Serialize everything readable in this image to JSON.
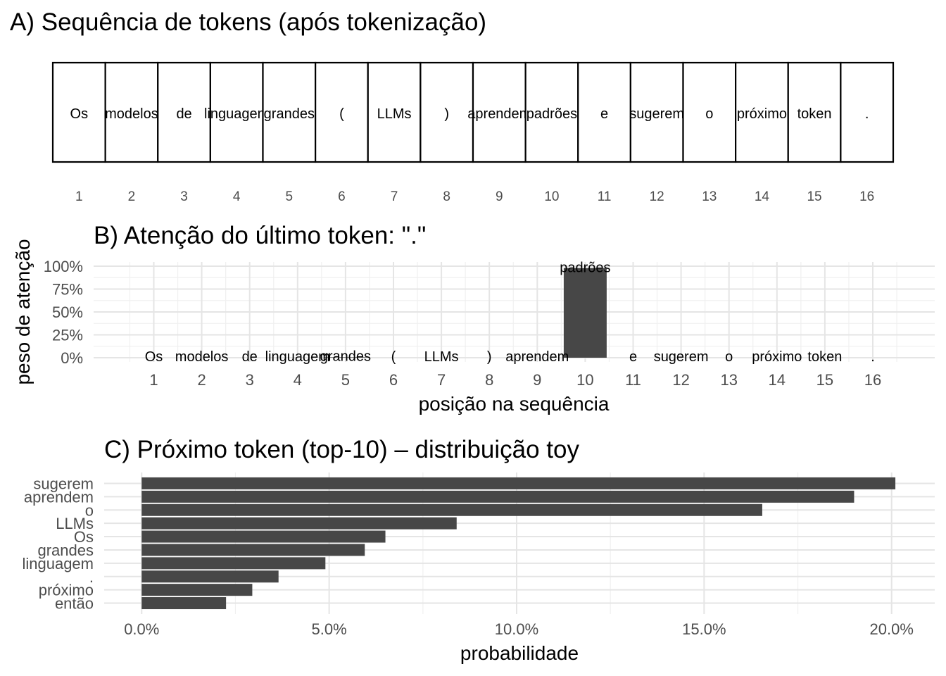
{
  "chart_data": [
    {
      "type": "table",
      "title": "A) Sequência de tokens (após tokenização)",
      "tokens": [
        "Os",
        "modelos",
        "de",
        "linguagem",
        "grandes",
        "(",
        "LLMs",
        ")",
        "aprendem",
        "padrões",
        "e",
        "sugerem",
        "o",
        "próximo",
        "token",
        "."
      ],
      "positions": [
        "1",
        "2",
        "3",
        "4",
        "5",
        "6",
        "7",
        "8",
        "9",
        "10",
        "11",
        "12",
        "13",
        "14",
        "15",
        "16"
      ]
    },
    {
      "type": "bar",
      "title": "B) Atenção do último token: \".\"",
      "xlabel": "posição na sequência",
      "ylabel": "peso de atenção",
      "categories": [
        "1",
        "2",
        "3",
        "4",
        "5",
        "6",
        "7",
        "8",
        "9",
        "10",
        "11",
        "12",
        "13",
        "14",
        "15",
        "16"
      ],
      "labels": [
        "Os",
        "modelos",
        "de",
        "linguagem",
        "grandes",
        "(",
        "LLMs",
        ")",
        "aprendem",
        "padrões",
        "e",
        "sugerem",
        "o",
        "próximo",
        "token",
        "."
      ],
      "values": [
        0,
        0,
        0,
        0,
        0.005,
        0,
        0,
        0,
        0,
        0.98,
        0,
        0,
        0,
        0,
        0,
        0
      ],
      "y_ticks": [
        "0%",
        "25%",
        "50%",
        "75%",
        "100%"
      ],
      "ylim": [
        0,
        1
      ],
      "grid": true
    },
    {
      "type": "bar",
      "orientation": "horizontal",
      "title": "C) Próximo token (top-10) – distribuição toy",
      "xlabel": "probabilidade",
      "ylabel": "",
      "categories": [
        "sugerem",
        "aprendem",
        "o",
        "LLMs",
        "Os",
        "grandes",
        "linguagem",
        ".",
        "próximo",
        "então"
      ],
      "values": [
        0.201,
        0.19,
        0.1655,
        0.084,
        0.065,
        0.0595,
        0.049,
        0.0365,
        0.0295,
        0.0225
      ],
      "x_ticks": [
        "0.0%",
        "5.0%",
        "10.0%",
        "15.0%",
        "20.0%"
      ],
      "xlim": [
        -0.01,
        0.2115
      ],
      "grid": true
    }
  ]
}
